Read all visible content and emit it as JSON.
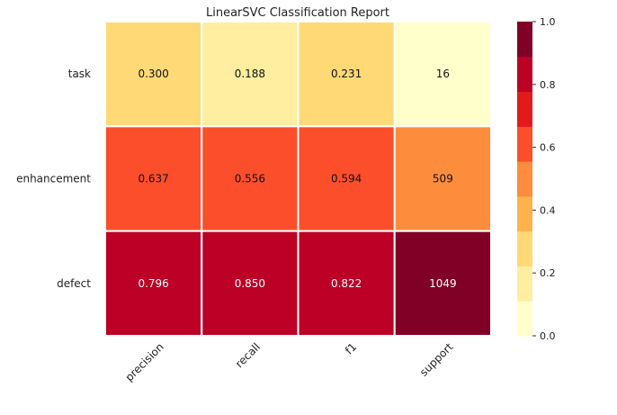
{
  "chart_data": {
    "type": "heatmap",
    "title": "LinearSVC Classification Report",
    "rows": [
      "task",
      "enhancement",
      "defect"
    ],
    "columns": [
      "precision",
      "recall",
      "f1",
      "support"
    ],
    "values": [
      [
        0.3,
        0.188,
        0.231,
        16
      ],
      [
        0.637,
        0.556,
        0.594,
        509
      ],
      [
        0.796,
        0.85,
        0.822,
        1049
      ]
    ],
    "cell_labels": [
      [
        "0.300",
        "0.188",
        "0.231",
        "16"
      ],
      [
        "0.637",
        "0.556",
        "0.594",
        "509"
      ],
      [
        "0.796",
        "0.850",
        "0.822",
        "1049"
      ]
    ],
    "support_color_fraction": [
      0.015,
      0.485,
      1.0
    ],
    "colorbar": {
      "range": [
        0.0,
        1.0
      ],
      "ticks": [
        "0.0",
        "0.2",
        "0.4",
        "0.6",
        "0.8",
        "1.0"
      ],
      "colormap": "YlOrRd",
      "bins": [
        "#ffffcc",
        "#ffeda0",
        "#fed976",
        "#feb24c",
        "#fd8d3c",
        "#fc4e2a",
        "#e31a1c",
        "#bd0026",
        "#800026"
      ]
    },
    "grid": false,
    "legend": "colorbar-right"
  }
}
